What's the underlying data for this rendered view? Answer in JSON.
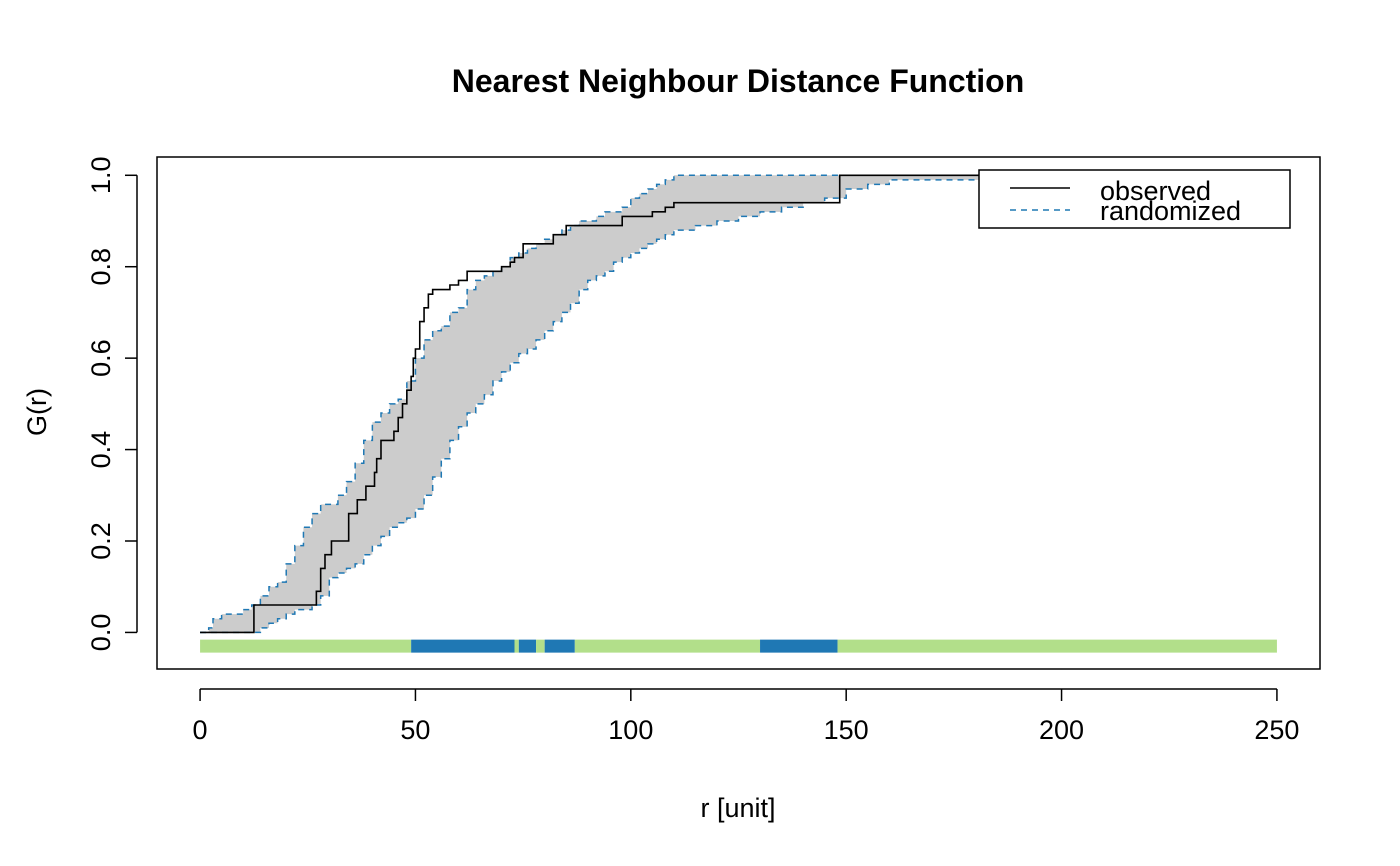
{
  "chart_data": {
    "type": "line",
    "title": "Nearest Neighbour Distance Function",
    "xlabel": "r [unit]",
    "ylabel": "G(r)",
    "xlim": [
      -10,
      260
    ],
    "ylim": [
      -0.08,
      1.04
    ],
    "x_ticks": [
      "0",
      "50",
      "100",
      "150",
      "200",
      "250"
    ],
    "x_tick_values": [
      0,
      50,
      100,
      150,
      200,
      250
    ],
    "y_ticks": [
      "0.0",
      "0.2",
      "0.4",
      "0.6",
      "0.8",
      "1.0"
    ],
    "y_tick_values": [
      0,
      0.2,
      0.4,
      0.6,
      0.8,
      1.0
    ],
    "legend": {
      "position": "top-right",
      "entries": [
        {
          "label": "observed",
          "style": "solid",
          "color": "#000000"
        },
        {
          "label": "randomized",
          "style": "dashed",
          "color": "#1F78B4"
        }
      ]
    },
    "colors": {
      "observed": "#000000",
      "envelope_fill": "#CCCCCC",
      "envelope_line": "#1F78B4",
      "significant": "#1F78B4",
      "not_significant": "#B2DF8A"
    },
    "observed": {
      "x": [
        0,
        12.5,
        12.5,
        26,
        27,
        28,
        29,
        30,
        30.5,
        34,
        34.5,
        36,
        36.5,
        38,
        38.5,
        40,
        40.5,
        41,
        42,
        45,
        46,
        47,
        48,
        49,
        49.5,
        50,
        50.5,
        51,
        52,
        53,
        54,
        56,
        58,
        58.5,
        60,
        61,
        62,
        64,
        65,
        70,
        72,
        73,
        74,
        75,
        76,
        78,
        80,
        82,
        83,
        85,
        90,
        95,
        97,
        98,
        100,
        105,
        107,
        108,
        110,
        120,
        125,
        130,
        135,
        140,
        145,
        148,
        148.5,
        150,
        200,
        250
      ],
      "y": [
        0,
        0,
        0.06,
        0.06,
        0.09,
        0.14,
        0.17,
        0.17,
        0.2,
        0.2,
        0.26,
        0.26,
        0.29,
        0.29,
        0.32,
        0.32,
        0.35,
        0.38,
        0.42,
        0.44,
        0.47,
        0.5,
        0.53,
        0.56,
        0.6,
        0.62,
        0.62,
        0.68,
        0.71,
        0.74,
        0.75,
        0.75,
        0.76,
        0.76,
        0.77,
        0.77,
        0.79,
        0.79,
        0.79,
        0.8,
        0.81,
        0.82,
        0.82,
        0.85,
        0.85,
        0.85,
        0.85,
        0.87,
        0.87,
        0.89,
        0.89,
        0.89,
        0.89,
        0.91,
        0.91,
        0.92,
        0.92,
        0.93,
        0.94,
        0.94,
        0.94,
        0.94,
        0.94,
        0.94,
        0.94,
        0.94,
        1.0,
        1.0,
        1.0,
        1.0
      ]
    },
    "envelope_upper": {
      "x": [
        0,
        2,
        3,
        5,
        8,
        10,
        12,
        14,
        16,
        18,
        20,
        22,
        24,
        26,
        28,
        30,
        32,
        34,
        36,
        38,
        40,
        42,
        44,
        46,
        48,
        50,
        52,
        54,
        56,
        58,
        60,
        62,
        64,
        66,
        68,
        70,
        72,
        74,
        76,
        78,
        80,
        82,
        84,
        86,
        88,
        90,
        92,
        94,
        96,
        98,
        100,
        102,
        104,
        106,
        108,
        110,
        120,
        130,
        140,
        150,
        160,
        200,
        250
      ],
      "y": [
        0,
        0.01,
        0.03,
        0.04,
        0.04,
        0.05,
        0.06,
        0.08,
        0.1,
        0.11,
        0.15,
        0.19,
        0.23,
        0.26,
        0.28,
        0.28,
        0.3,
        0.33,
        0.37,
        0.42,
        0.46,
        0.48,
        0.5,
        0.51,
        0.55,
        0.6,
        0.64,
        0.66,
        0.67,
        0.7,
        0.71,
        0.75,
        0.77,
        0.78,
        0.79,
        0.8,
        0.82,
        0.83,
        0.84,
        0.85,
        0.86,
        0.87,
        0.88,
        0.89,
        0.9,
        0.9,
        0.91,
        0.92,
        0.92,
        0.93,
        0.95,
        0.96,
        0.97,
        0.98,
        0.99,
        1.0,
        1.0,
        1.0,
        1.0,
        1.0,
        1.0,
        1.0,
        1.0
      ]
    },
    "envelope_lower": {
      "x": [
        0,
        10,
        12,
        14,
        16,
        18,
        20,
        22,
        24,
        26,
        28,
        30,
        32,
        34,
        36,
        38,
        40,
        42,
        44,
        46,
        48,
        50,
        52,
        54,
        56,
        58,
        60,
        62,
        64,
        66,
        68,
        70,
        72,
        74,
        76,
        78,
        80,
        82,
        84,
        86,
        88,
        90,
        92,
        94,
        96,
        98,
        100,
        102,
        104,
        106,
        108,
        110,
        115,
        120,
        125,
        130,
        135,
        140,
        145,
        150,
        155,
        160,
        200,
        250
      ],
      "y": [
        0,
        0,
        0,
        0.01,
        0.02,
        0.03,
        0.04,
        0.05,
        0.05,
        0.06,
        0.08,
        0.12,
        0.13,
        0.14,
        0.15,
        0.17,
        0.19,
        0.21,
        0.23,
        0.24,
        0.25,
        0.27,
        0.3,
        0.34,
        0.38,
        0.42,
        0.45,
        0.48,
        0.5,
        0.52,
        0.55,
        0.57,
        0.59,
        0.61,
        0.62,
        0.64,
        0.66,
        0.68,
        0.7,
        0.72,
        0.75,
        0.77,
        0.78,
        0.79,
        0.81,
        0.82,
        0.83,
        0.84,
        0.85,
        0.86,
        0.87,
        0.88,
        0.89,
        0.9,
        0.91,
        0.92,
        0.93,
        0.94,
        0.95,
        0.97,
        0.98,
        0.99,
        1.0,
        1.0
      ]
    },
    "significance_bar": {
      "y": -0.03,
      "segments": [
        {
          "from": 0,
          "to": 49,
          "significant": false
        },
        {
          "from": 49,
          "to": 73,
          "significant": true
        },
        {
          "from": 73,
          "to": 74,
          "significant": false
        },
        {
          "from": 74,
          "to": 78,
          "significant": true
        },
        {
          "from": 78,
          "to": 80,
          "significant": false
        },
        {
          "from": 80,
          "to": 87,
          "significant": true
        },
        {
          "from": 87,
          "to": 130,
          "significant": false
        },
        {
          "from": 130,
          "to": 148,
          "significant": true
        },
        {
          "from": 148,
          "to": 250,
          "significant": false
        }
      ]
    }
  }
}
